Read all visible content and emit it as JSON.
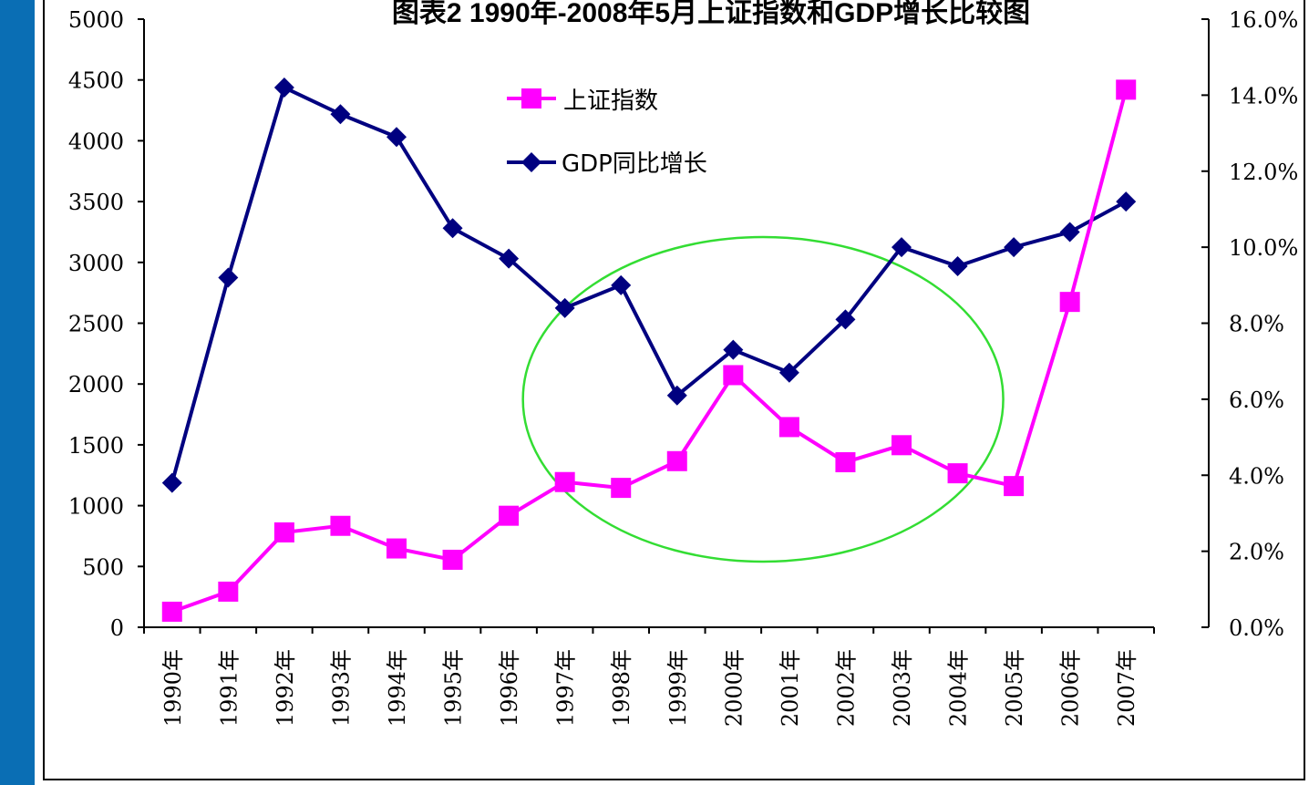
{
  "chart_data": {
    "type": "line",
    "title": "图表2  1990年-2008年5月上证指数和GDP增长比较图",
    "categories": [
      "1990年",
      "1991年",
      "1992年",
      "1993年",
      "1994年",
      "1995年",
      "1996年",
      "1997年",
      "1998年",
      "1999年",
      "2000年",
      "2001年",
      "2002年",
      "2003年",
      "2004年",
      "2005年",
      "2006年",
      "2007年"
    ],
    "series": [
      {
        "name": "上证指数",
        "axis": "left",
        "color": "#ff00ff",
        "marker": "square",
        "values": [
          128,
          293,
          780,
          834,
          648,
          555,
          917,
          1194,
          1146,
          1366,
          2073,
          1646,
          1357,
          1497,
          1266,
          1161,
          2675,
          4420
        ]
      },
      {
        "name": "GDP同比增长",
        "axis": "right",
        "color": "#000080",
        "marker": "diamond",
        "values": [
          3.8,
          9.2,
          14.2,
          13.5,
          12.9,
          10.5,
          9.7,
          8.4,
          9.0,
          6.1,
          7.3,
          6.7,
          8.1,
          10.0,
          9.5,
          10.0,
          10.4,
          11.2
        ]
      }
    ],
    "y_left": {
      "range": [
        0,
        5000
      ],
      "ticks": [
        "0",
        "500",
        "1000",
        "1500",
        "2000",
        "2500",
        "3000",
        "3500",
        "4000",
        "4500",
        "5000"
      ]
    },
    "y_right": {
      "range": [
        0,
        16
      ],
      "unit": "%",
      "ticks": [
        "0.0%",
        "2.0%",
        "4.0%",
        "6.0%",
        "8.0%",
        "10.0%",
        "12.0%",
        "14.0%",
        "16.0%"
      ]
    },
    "grid": false,
    "legend": "top-center",
    "annotation": {
      "shape": "ellipse",
      "color": "#33dd33",
      "span": [
        "1997年",
        "2004年"
      ]
    }
  },
  "colors": {
    "sidebar": "#0a6eb4"
  }
}
